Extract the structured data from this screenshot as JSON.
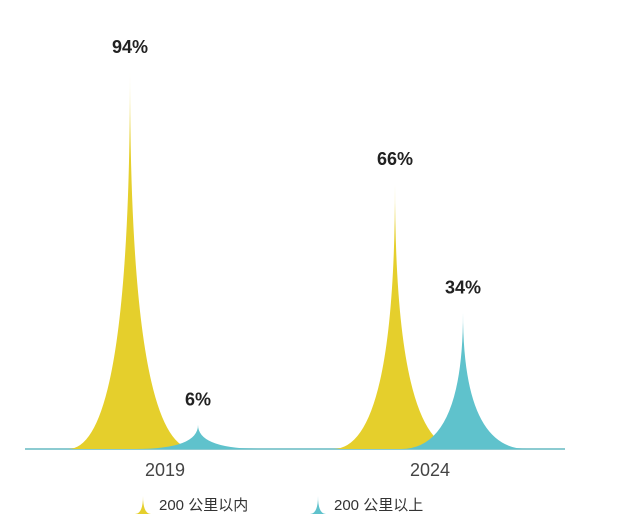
{
  "chart_data": {
    "type": "spike",
    "categories": [
      "2019",
      "2024"
    ],
    "series": [
      {
        "name": "200 公里以内",
        "color": "#e5cf2c",
        "values": [
          94,
          66
        ],
        "value_labels": [
          "94%",
          "66%"
        ]
      },
      {
        "name": "200 公里以上",
        "color": "#5fc2cc",
        "values": [
          6,
          34
        ],
        "value_labels": [
          "6%",
          "34%"
        ]
      }
    ]
  }
}
